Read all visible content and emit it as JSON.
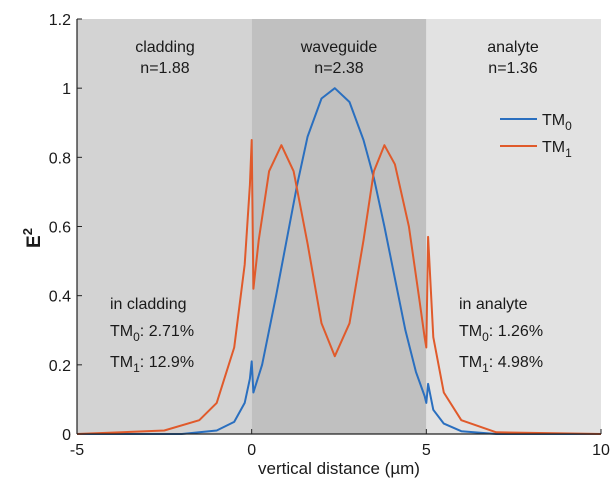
{
  "chart_data": {
    "type": "line",
    "xlabel": "vertical distance (µm)",
    "ylabel": "E",
    "ylabel_sup": "2",
    "xlim": [
      -5,
      10
    ],
    "ylim": [
      0,
      1.2
    ],
    "x_ticks": [
      "-5",
      "0",
      "5",
      "10"
    ],
    "y_ticks": [
      "0",
      "0.2",
      "0.4",
      "0.6",
      "0.8",
      "1",
      "1.2"
    ],
    "x_tick_values": [
      -5,
      0,
      5,
      10
    ],
    "y_tick_values": [
      0,
      0.2,
      0.4,
      0.6,
      0.8,
      1.0,
      1.2
    ],
    "grid": false,
    "legend_position": "top-right",
    "regions": [
      {
        "name": "cladding",
        "index": "n=1.88",
        "x_range": [
          -5,
          0
        ],
        "color": "#d3d3d3"
      },
      {
        "name": "waveguide",
        "index": "n=2.38",
        "x_range": [
          0,
          5
        ],
        "color": "#c0c0c0"
      },
      {
        "name": "analyte",
        "index": "n=1.36",
        "x_range": [
          5,
          10
        ],
        "color": "#e2e2e2"
      }
    ],
    "series": [
      {
        "name": "TM0",
        "name_base": "TM",
        "name_sub": "0",
        "color": "#2a6fbf",
        "x": [
          -5,
          -2,
          -1,
          -0.5,
          -0.2,
          -0.05,
          0,
          0.05,
          0.3,
          0.7,
          1.0,
          1.3,
          1.6,
          2.0,
          2.38,
          2.8,
          3.2,
          3.5,
          3.8,
          4.1,
          4.4,
          4.7,
          4.95,
          5,
          5.05,
          5.2,
          5.5,
          6,
          7,
          10
        ],
        "y": [
          0,
          0.0,
          0.01,
          0.035,
          0.09,
          0.16,
          0.21,
          0.12,
          0.2,
          0.4,
          0.56,
          0.72,
          0.86,
          0.97,
          1.0,
          0.96,
          0.85,
          0.74,
          0.6,
          0.45,
          0.3,
          0.18,
          0.11,
          0.09,
          0.145,
          0.07,
          0.03,
          0.008,
          0.0,
          0
        ]
      },
      {
        "name": "TM1",
        "name_base": "TM",
        "name_sub": "1",
        "color": "#e05a2b",
        "x": [
          -5,
          -2.5,
          -1.5,
          -1,
          -0.5,
          -0.2,
          -0.05,
          0,
          0.05,
          0.2,
          0.5,
          0.85,
          1.2,
          1.6,
          2.0,
          2.38,
          2.8,
          3.2,
          3.5,
          3.8,
          4.1,
          4.5,
          4.8,
          4.95,
          5,
          5.05,
          5.2,
          5.5,
          6,
          7,
          10
        ],
        "y": [
          0,
          0.01,
          0.04,
          0.09,
          0.25,
          0.49,
          0.72,
          0.85,
          0.42,
          0.56,
          0.76,
          0.835,
          0.76,
          0.55,
          0.32,
          0.225,
          0.32,
          0.56,
          0.76,
          0.835,
          0.78,
          0.6,
          0.39,
          0.28,
          0.25,
          0.57,
          0.28,
          0.12,
          0.04,
          0.005,
          0
        ]
      }
    ],
    "annotations": {
      "cladding": {
        "title": "in cladding",
        "tm0_value": ": 2.71%",
        "tm1_value": ": 12.9%"
      },
      "analyte": {
        "title": "in analyte",
        "tm0_value": ": 1.26%",
        "tm1_value": ": 4.98%"
      },
      "tm_base": "TM",
      "tm0_sub": "0",
      "tm1_sub": "1"
    }
  }
}
